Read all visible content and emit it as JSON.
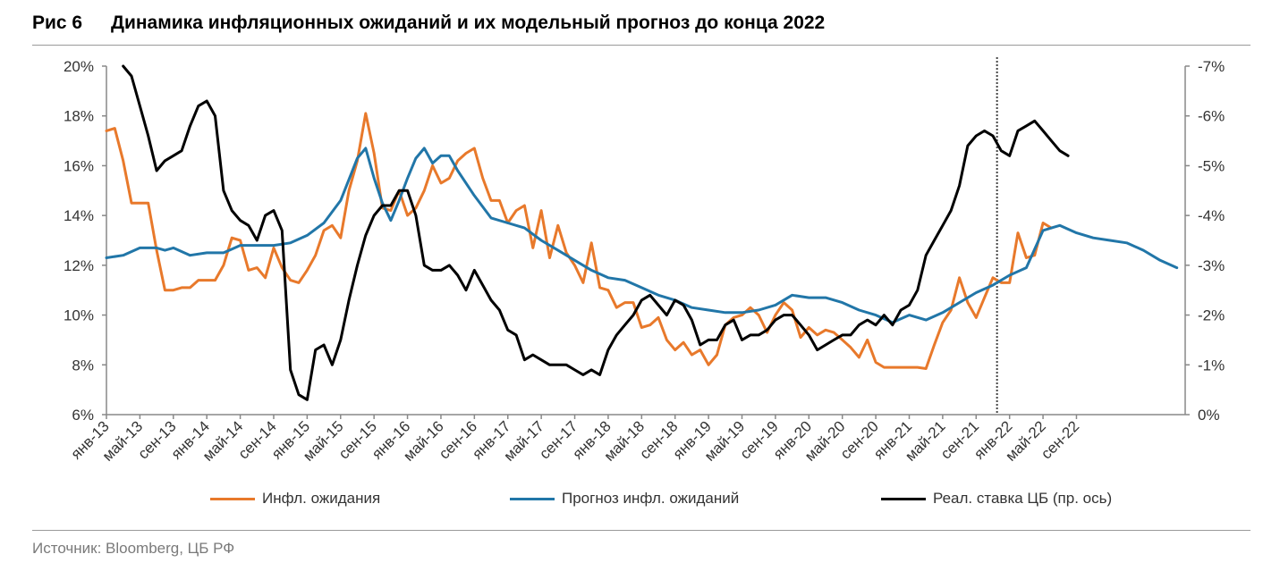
{
  "header": {
    "fig_number": "Рис 6",
    "title": "Динамика инфляционных ожиданий и их модельный прогноз до конца 2022"
  },
  "source": "Источник: Bloomberg, ЦБ РФ",
  "legend": [
    {
      "label": "Инфл. ожидания",
      "color": "#e8792b"
    },
    {
      "label": "Прогноз инфл. ожиданий",
      "color": "#2176a8"
    },
    {
      "label": "Реал. ставка ЦБ (пр. ось)",
      "color": "#000000"
    }
  ],
  "chart_data": {
    "type": "line",
    "title": "Динамика инфляционных ожиданий и их модельный прогноз до конца 2022",
    "x_tick_labels": [
      "янв-13",
      "май-13",
      "сен-13",
      "янв-14",
      "май-14",
      "сен-14",
      "янв-15",
      "май-15",
      "сен-15",
      "янв-16",
      "май-16",
      "сен-16",
      "янв-17",
      "май-17",
      "сен-17",
      "янв-18",
      "май-18",
      "сен-18",
      "янв-19",
      "май-19",
      "сен-19",
      "янв-20",
      "май-20",
      "сен-20",
      "янв-21",
      "май-21",
      "сен-21",
      "янв-22",
      "май-22",
      "сен-22"
    ],
    "x_unit": "month index from янв-13",
    "x_range": [
      0,
      129
    ],
    "left_axis": {
      "ticks": [
        "6%",
        "8%",
        "10%",
        "12%",
        "14%",
        "16%",
        "18%",
        "20%"
      ],
      "min": 6,
      "max": 20
    },
    "right_axis": {
      "ticks": [
        "0%",
        "-1%",
        "-2%",
        "-3%",
        "-4%",
        "-5%",
        "-6%",
        "-7%"
      ],
      "min": 0,
      "max": -7,
      "inverted": true
    },
    "forecast_marker_x": 106.5,
    "series": [
      {
        "name": "Инфл. ожидания",
        "axis": "left",
        "color": "#e8792b",
        "points": [
          [
            0,
            17.4
          ],
          [
            1,
            17.5
          ],
          [
            2,
            16.2
          ],
          [
            3,
            14.5
          ],
          [
            4,
            14.5
          ],
          [
            5,
            14.5
          ],
          [
            6,
            12.6
          ],
          [
            7,
            11.0
          ],
          [
            8,
            11.0
          ],
          [
            9,
            11.1
          ],
          [
            10,
            11.1
          ],
          [
            11,
            11.4
          ],
          [
            12,
            11.4
          ],
          [
            13,
            11.4
          ],
          [
            14,
            12.0
          ],
          [
            15,
            13.1
          ],
          [
            16,
            13.0
          ],
          [
            17,
            11.8
          ],
          [
            18,
            11.9
          ],
          [
            19,
            11.5
          ],
          [
            20,
            12.7
          ],
          [
            21,
            11.9
          ],
          [
            22,
            11.4
          ],
          [
            23,
            11.3
          ],
          [
            24,
            11.8
          ],
          [
            25,
            12.4
          ],
          [
            26,
            13.4
          ],
          [
            27,
            13.6
          ],
          [
            28,
            13.1
          ],
          [
            29,
            15.0
          ],
          [
            30,
            16.2
          ],
          [
            31,
            18.1
          ],
          [
            32,
            16.5
          ],
          [
            33,
            14.3
          ],
          [
            34,
            14.2
          ],
          [
            35,
            15.0
          ],
          [
            36,
            14.0
          ],
          [
            37,
            14.3
          ],
          [
            38,
            15.0
          ],
          [
            39,
            16.0
          ],
          [
            40,
            15.3
          ],
          [
            41,
            15.5
          ],
          [
            42,
            16.2
          ],
          [
            43,
            16.5
          ],
          [
            44,
            16.7
          ],
          [
            45,
            15.5
          ],
          [
            46,
            14.6
          ],
          [
            47,
            14.6
          ],
          [
            48,
            13.7
          ],
          [
            49,
            14.2
          ],
          [
            50,
            14.4
          ],
          [
            51,
            12.7
          ],
          [
            52,
            14.2
          ],
          [
            53,
            12.3
          ],
          [
            54,
            13.6
          ],
          [
            55,
            12.5
          ],
          [
            56,
            12.0
          ],
          [
            57,
            11.3
          ],
          [
            58,
            12.9
          ],
          [
            59,
            11.1
          ],
          [
            60,
            11.0
          ],
          [
            61,
            10.3
          ],
          [
            62,
            10.5
          ],
          [
            63,
            10.5
          ],
          [
            64,
            9.5
          ],
          [
            65,
            9.6
          ],
          [
            66,
            9.9
          ],
          [
            67,
            9.0
          ],
          [
            68,
            8.6
          ],
          [
            69,
            8.9
          ],
          [
            70,
            8.4
          ],
          [
            71,
            8.6
          ],
          [
            72,
            8.0
          ],
          [
            73,
            8.4
          ],
          [
            74,
            9.6
          ],
          [
            75,
            9.9
          ],
          [
            76,
            10.0
          ],
          [
            77,
            10.3
          ],
          [
            78,
            10.0
          ],
          [
            79,
            9.3
          ],
          [
            80,
            10.0
          ],
          [
            81,
            10.5
          ],
          [
            82,
            10.2
          ],
          [
            83,
            9.1
          ],
          [
            84,
            9.5
          ],
          [
            85,
            9.2
          ],
          [
            86,
            9.4
          ],
          [
            87,
            9.3
          ],
          [
            88,
            9.0
          ],
          [
            89,
            8.7
          ],
          [
            90,
            8.3
          ],
          [
            91,
            9.0
          ],
          [
            92,
            8.1
          ],
          [
            93,
            7.9
          ],
          [
            94,
            7.9
          ],
          [
            95,
            7.9
          ],
          [
            96,
            7.9
          ],
          [
            97,
            7.9
          ],
          [
            98,
            7.85
          ],
          [
            99,
            8.8
          ],
          [
            100,
            9.7
          ],
          [
            101,
            10.2
          ],
          [
            102,
            11.5
          ],
          [
            103,
            10.5
          ],
          [
            104,
            9.9
          ],
          [
            105,
            10.7
          ],
          [
            106,
            11.5
          ],
          [
            107,
            11.3
          ],
          [
            108,
            11.3
          ],
          [
            109,
            13.3
          ],
          [
            110,
            12.3
          ],
          [
            111,
            12.4
          ],
          [
            112,
            13.7
          ],
          [
            113,
            13.5
          ]
        ]
      },
      {
        "name": "Прогноз инфл. ожиданий",
        "axis": "left",
        "color": "#2176a8",
        "points": [
          [
            0,
            12.3
          ],
          [
            2,
            12.4
          ],
          [
            4,
            12.7
          ],
          [
            6,
            12.7
          ],
          [
            7,
            12.6
          ],
          [
            8,
            12.7
          ],
          [
            10,
            12.4
          ],
          [
            12,
            12.5
          ],
          [
            14,
            12.5
          ],
          [
            16,
            12.8
          ],
          [
            18,
            12.8
          ],
          [
            20,
            12.8
          ],
          [
            22,
            12.9
          ],
          [
            24,
            13.2
          ],
          [
            26,
            13.7
          ],
          [
            28,
            14.6
          ],
          [
            30,
            16.3
          ],
          [
            31,
            16.7
          ],
          [
            32,
            15.5
          ],
          [
            33,
            14.5
          ],
          [
            34,
            13.8
          ],
          [
            35,
            14.6
          ],
          [
            36,
            15.5
          ],
          [
            37,
            16.3
          ],
          [
            38,
            16.7
          ],
          [
            39,
            16.1
          ],
          [
            40,
            16.4
          ],
          [
            41,
            16.4
          ],
          [
            42,
            15.8
          ],
          [
            44,
            14.8
          ],
          [
            46,
            13.9
          ],
          [
            48,
            13.7
          ],
          [
            50,
            13.5
          ],
          [
            52,
            13.0
          ],
          [
            54,
            12.6
          ],
          [
            56,
            12.2
          ],
          [
            58,
            11.8
          ],
          [
            60,
            11.5
          ],
          [
            62,
            11.4
          ],
          [
            64,
            11.1
          ],
          [
            66,
            10.8
          ],
          [
            68,
            10.6
          ],
          [
            70,
            10.3
          ],
          [
            72,
            10.2
          ],
          [
            74,
            10.1
          ],
          [
            76,
            10.1
          ],
          [
            78,
            10.2
          ],
          [
            80,
            10.4
          ],
          [
            82,
            10.8
          ],
          [
            84,
            10.7
          ],
          [
            86,
            10.7
          ],
          [
            88,
            10.5
          ],
          [
            90,
            10.2
          ],
          [
            92,
            10.0
          ],
          [
            94,
            9.7
          ],
          [
            96,
            10.0
          ],
          [
            98,
            9.8
          ],
          [
            100,
            10.1
          ],
          [
            102,
            10.5
          ],
          [
            104,
            10.9
          ],
          [
            106,
            11.2
          ],
          [
            108,
            11.6
          ],
          [
            110,
            11.9
          ],
          [
            112,
            13.4
          ],
          [
            113,
            13.5
          ],
          [
            114,
            13.6
          ],
          [
            116,
            13.3
          ],
          [
            118,
            13.1
          ],
          [
            120,
            13.0
          ],
          [
            122,
            12.9
          ],
          [
            124,
            12.6
          ],
          [
            126,
            12.2
          ],
          [
            128,
            11.9
          ]
        ]
      },
      {
        "name": "Реал. ставка ЦБ (пр. ось)",
        "axis": "right",
        "color": "#000000",
        "points": [
          [
            2,
            -7.0
          ],
          [
            3,
            -6.8
          ],
          [
            4,
            -6.2
          ],
          [
            5,
            -5.6
          ],
          [
            6,
            -4.9
          ],
          [
            7,
            -5.1
          ],
          [
            8,
            -5.2
          ],
          [
            9,
            -5.3
          ],
          [
            10,
            -5.8
          ],
          [
            11,
            -6.2
          ],
          [
            12,
            -6.3
          ],
          [
            13,
            -6.0
          ],
          [
            14,
            -4.5
          ],
          [
            15,
            -4.1
          ],
          [
            16,
            -3.9
          ],
          [
            17,
            -3.8
          ],
          [
            18,
            -3.5
          ],
          [
            19,
            -4.0
          ],
          [
            20,
            -4.1
          ],
          [
            21,
            -3.7
          ],
          [
            22,
            -0.9
          ],
          [
            23,
            -0.4
          ],
          [
            24,
            -0.3
          ],
          [
            25,
            -1.3
          ],
          [
            26,
            -1.4
          ],
          [
            27,
            -1.0
          ],
          [
            28,
            -1.5
          ],
          [
            29,
            -2.3
          ],
          [
            30,
            -3.0
          ],
          [
            31,
            -3.6
          ],
          [
            32,
            -4.0
          ],
          [
            33,
            -4.2
          ],
          [
            34,
            -4.2
          ],
          [
            35,
            -4.5
          ],
          [
            36,
            -4.5
          ],
          [
            37,
            -4.0
          ],
          [
            38,
            -3.0
          ],
          [
            39,
            -2.9
          ],
          [
            40,
            -2.9
          ],
          [
            41,
            -3.0
          ],
          [
            42,
            -2.8
          ],
          [
            43,
            -2.5
          ],
          [
            44,
            -2.9
          ],
          [
            45,
            -2.6
          ],
          [
            46,
            -2.3
          ],
          [
            47,
            -2.1
          ],
          [
            48,
            -1.7
          ],
          [
            49,
            -1.6
          ],
          [
            50,
            -1.1
          ],
          [
            51,
            -1.2
          ],
          [
            52,
            -1.1
          ],
          [
            53,
            -1.0
          ],
          [
            54,
            -1.0
          ],
          [
            55,
            -1.0
          ],
          [
            56,
            -0.9
          ],
          [
            57,
            -0.8
          ],
          [
            58,
            -0.9
          ],
          [
            59,
            -0.8
          ],
          [
            60,
            -1.3
          ],
          [
            61,
            -1.6
          ],
          [
            62,
            -1.8
          ],
          [
            63,
            -2.0
          ],
          [
            64,
            -2.3
          ],
          [
            65,
            -2.4
          ],
          [
            66,
            -2.2
          ],
          [
            67,
            -2.0
          ],
          [
            68,
            -2.3
          ],
          [
            69,
            -2.2
          ],
          [
            70,
            -1.9
          ],
          [
            71,
            -1.4
          ],
          [
            72,
            -1.5
          ],
          [
            73,
            -1.5
          ],
          [
            74,
            -1.8
          ],
          [
            75,
            -1.9
          ],
          [
            76,
            -1.5
          ],
          [
            77,
            -1.6
          ],
          [
            78,
            -1.6
          ],
          [
            79,
            -1.7
          ],
          [
            80,
            -1.9
          ],
          [
            81,
            -2.0
          ],
          [
            82,
            -2.0
          ],
          [
            83,
            -1.8
          ],
          [
            84,
            -1.6
          ],
          [
            85,
            -1.3
          ],
          [
            86,
            -1.4
          ],
          [
            87,
            -1.5
          ],
          [
            88,
            -1.6
          ],
          [
            89,
            -1.6
          ],
          [
            90,
            -1.8
          ],
          [
            91,
            -1.9
          ],
          [
            92,
            -1.8
          ],
          [
            93,
            -2.0
          ],
          [
            94,
            -1.8
          ],
          [
            95,
            -2.1
          ],
          [
            96,
            -2.2
          ],
          [
            97,
            -2.5
          ],
          [
            98,
            -3.2
          ],
          [
            99,
            -3.5
          ],
          [
            100,
            -3.8
          ],
          [
            101,
            -4.1
          ],
          [
            102,
            -4.6
          ],
          [
            103,
            -5.4
          ],
          [
            104,
            -5.6
          ],
          [
            105,
            -5.7
          ],
          [
            106,
            -5.6
          ],
          [
            107,
            -5.3
          ],
          [
            108,
            -5.2
          ],
          [
            109,
            -5.7
          ],
          [
            110,
            -5.8
          ],
          [
            111,
            -5.9
          ],
          [
            112,
            -5.7
          ],
          [
            113,
            -5.5
          ],
          [
            114,
            -5.3
          ],
          [
            115,
            -5.2
          ]
        ]
      }
    ]
  }
}
